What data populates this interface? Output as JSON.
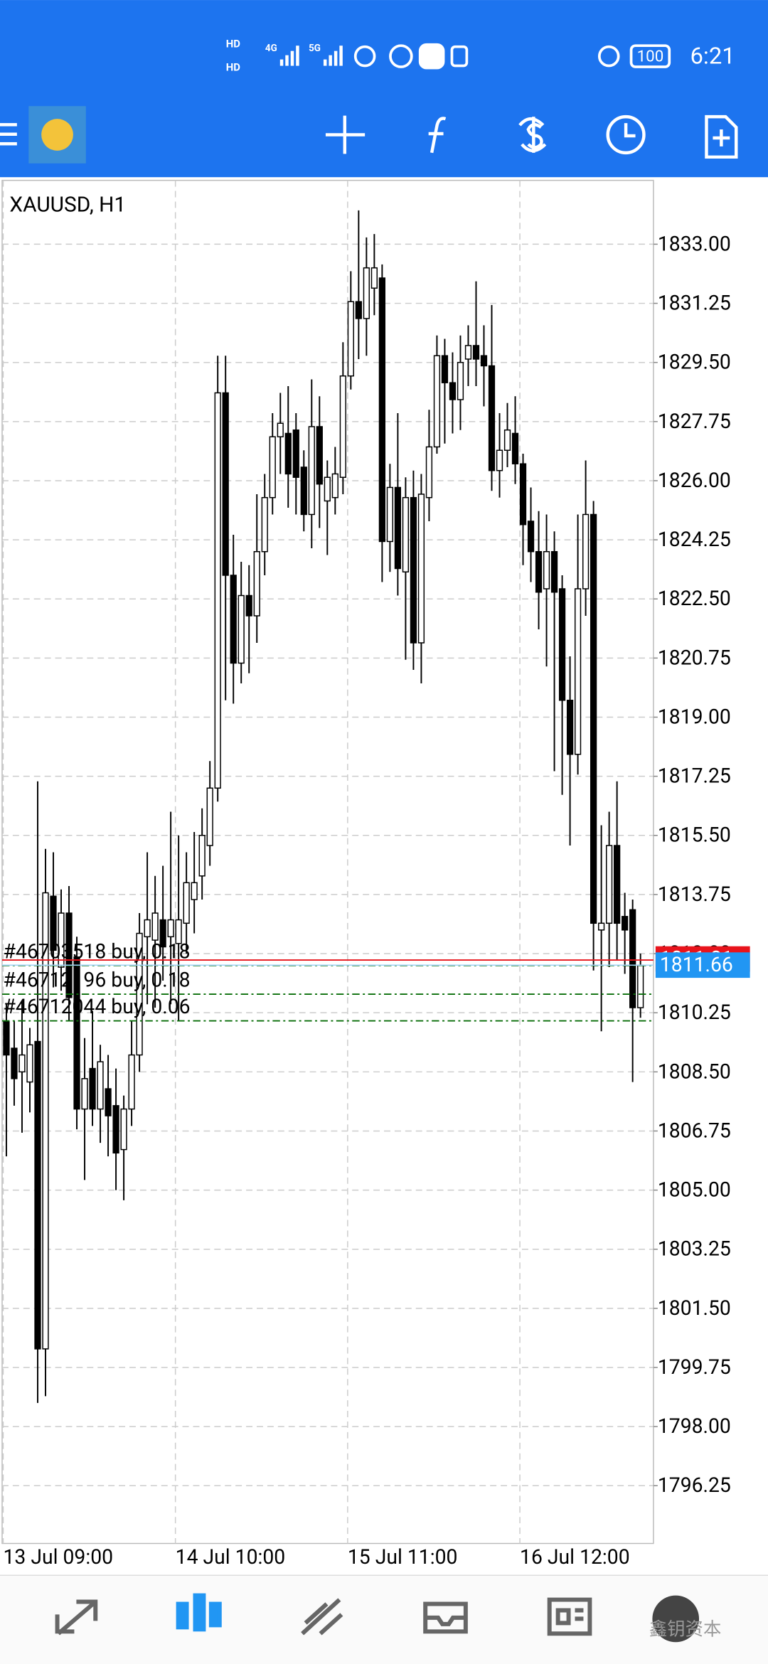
{
  "status_bar": {
    "hd": [
      "HD",
      "HD"
    ],
    "network": [
      "4G",
      "5G"
    ],
    "battery": "100",
    "time": "6:21"
  },
  "chart_data": {
    "type": "candlestick",
    "title": "XAUUSD, H1",
    "open": [
      1810.0,
      1809.2,
      1808.5,
      1808.2,
      1809.4,
      1800.3,
      1813.7,
      1811.6,
      1813.2,
      1811.9,
      1807.4,
      1808.6,
      1807.4,
      1808.0,
      1807.5,
      1806.2,
      1807.4,
      1809.0,
      1812.5,
      1812.4,
      1813.0,
      1812.5,
      1812.3,
      1812.9,
      1813.6,
      1814.3,
      1815.2,
      1816.9,
      1828.6,
      1823.2,
      1820.6,
      1822.6,
      1822.0,
      1823.9,
      1825.5,
      1827.3,
      1827.4,
      1827.5,
      1826.4,
      1825.0,
      1827.6,
      1825.4,
      1825.5,
      1826.1,
      1829.1,
      1831.3,
      1830.8,
      1831.7,
      1832.0,
      1824.2,
      1825.8,
      1823.3,
      1825.5,
      1821.2,
      1825.5,
      1827.0,
      1829.7,
      1828.9,
      1828.4,
      1829.6,
      1830.0,
      1829.7,
      1829.4,
      1826.3,
      1826.9,
      1827.4,
      1826.5,
      1824.8,
      1823.9,
      1822.8,
      1823.9,
      1822.8,
      1819.5,
      1817.9,
      1822.8,
      1825.0,
      1812.7,
      1812.9,
      1815.2,
      1813.1,
      1813.3,
      1810.4
    ],
    "high": [
      1810.5,
      1810.0,
      1810.6,
      1809.8,
      1817.1,
      1815.1,
      1815.0,
      1813.9,
      1814.0,
      1812.5,
      1809.5,
      1810.3,
      1809.3,
      1809.0,
      1808.6,
      1807.8,
      1810.0,
      1813.2,
      1815.0,
      1814.3,
      1814.6,
      1816.2,
      1815.5,
      1815.0,
      1815.6,
      1816.3,
      1817.7,
      1829.7,
      1829.7,
      1824.4,
      1823.6,
      1823.5,
      1825.6,
      1826.2,
      1828.0,
      1828.6,
      1828.8,
      1828.0,
      1826.9,
      1829.0,
      1828.5,
      1826.6,
      1827.0,
      1830.1,
      1832.2,
      1834.0,
      1833.2,
      1833.3,
      1832.4,
      1826.5,
      1828.0,
      1826.1,
      1826.3,
      1826.2,
      1828.1,
      1830.3,
      1830.2,
      1829.8,
      1830.3,
      1830.6,
      1831.9,
      1830.6,
      1831.2,
      1828.0,
      1828.3,
      1828.5,
      1826.8,
      1825.8,
      1825.1,
      1825.0,
      1824.5,
      1823.2,
      1820.8,
      1825.0,
      1826.6,
      1825.4,
      1815.8,
      1816.2,
      1817.1,
      1813.8,
      1813.6,
      1812.0
    ],
    "low": [
      1806.0,
      1807.5,
      1806.7,
      1807.3,
      1798.7,
      1798.9,
      1811.0,
      1810.9,
      1810.0,
      1806.8,
      1805.3,
      1806.9,
      1806.4,
      1806.0,
      1805.0,
      1804.7,
      1806.9,
      1808.5,
      1810.5,
      1810.4,
      1811.2,
      1810.5,
      1810.0,
      1812.0,
      1812.6,
      1813.6,
      1814.6,
      1816.5,
      1819.5,
      1819.4,
      1820.0,
      1820.3,
      1821.2,
      1823.2,
      1825.0,
      1826.2,
      1825.2,
      1825.0,
      1824.5,
      1824.0,
      1824.6,
      1823.8,
      1825.0,
      1825.6,
      1828.7,
      1829.6,
      1829.7,
      1830.9,
      1823.0,
      1823.3,
      1822.6,
      1820.7,
      1820.4,
      1820.0,
      1824.8,
      1826.8,
      1827.1,
      1827.4,
      1827.5,
      1828.8,
      1828.8,
      1828.2,
      1825.7,
      1825.5,
      1826.4,
      1825.9,
      1823.5,
      1823.0,
      1821.6,
      1820.5,
      1817.4,
      1816.7,
      1815.2,
      1817.3,
      1822.0,
      1811.5,
      1809.7,
      1811.6,
      1811.8,
      1811.4,
      1808.2,
      1810.1
    ],
    "close": [
      1809.0,
      1808.3,
      1809.0,
      1809.3,
      1800.3,
      1813.8,
      1812.1,
      1813.2,
      1810.7,
      1807.4,
      1808.3,
      1807.4,
      1808.8,
      1807.2,
      1806.1,
      1807.4,
      1809.0,
      1812.6,
      1813.0,
      1813.2,
      1812.2,
      1813.0,
      1813.0,
      1814.1,
      1814.1,
      1815.5,
      1816.9,
      1828.6,
      1823.2,
      1820.6,
      1822.6,
      1822.0,
      1823.9,
      1825.5,
      1827.3,
      1827.7,
      1826.2,
      1826.1,
      1825.0,
      1827.6,
      1825.9,
      1826.1,
      1826.2,
      1829.1,
      1831.3,
      1830.8,
      1832.3,
      1832.3,
      1824.2,
      1825.8,
      1823.4,
      1825.5,
      1821.2,
      1825.6,
      1827.0,
      1829.7,
      1828.9,
      1828.4,
      1829.5,
      1830.0,
      1829.6,
      1829.4,
      1826.3,
      1826.9,
      1827.5,
      1826.5,
      1824.7,
      1823.9,
      1822.7,
      1823.9,
      1822.7,
      1819.5,
      1817.9,
      1822.8,
      1825.0,
      1812.9,
      1812.9,
      1815.2,
      1812.9,
      1812.7,
      1810.4,
      1811.66
    ],
    "bull_color": "#ffffff",
    "bear_color": "#000000",
    "ylim": [
      1794.54,
      1834.89
    ],
    "yticks": [
      {
        "value": 1833,
        "label": "1833.00"
      },
      {
        "value": 1831.25,
        "label": "1831.25"
      },
      {
        "value": 1829.5,
        "label": "1829.50"
      },
      {
        "value": 1827.75,
        "label": "1827.75"
      },
      {
        "value": 1826,
        "label": "1826.00"
      },
      {
        "value": 1824.25,
        "label": "1824.25"
      },
      {
        "value": 1822.5,
        "label": "1822.50"
      },
      {
        "value": 1820.75,
        "label": "1820.75"
      },
      {
        "value": 1819,
        "label": "1819.00"
      },
      {
        "value": 1817.25,
        "label": "1817.25"
      },
      {
        "value": 1815.5,
        "label": "1815.50"
      },
      {
        "value": 1813.75,
        "label": "1813.75"
      },
      {
        "value": 1812,
        "label": "1812.00"
      },
      {
        "value": 1810.25,
        "label": "1810.25"
      },
      {
        "value": 1808.5,
        "label": "1808.50"
      },
      {
        "value": 1806.75,
        "label": "1806.75"
      },
      {
        "value": 1805,
        "label": "1805.00"
      },
      {
        "value": 1803.25,
        "label": "1803.25"
      },
      {
        "value": 1801.5,
        "label": "1801.50"
      },
      {
        "value": 1799.75,
        "label": "1799.75"
      },
      {
        "value": 1798,
        "label": "1798.00"
      },
      {
        "value": 1796.25,
        "label": "1796.25"
      }
    ],
    "xticks": [
      {
        "value": 0,
        "label": "13 Jul 09:00"
      },
      {
        "value": 22,
        "label": "14 Jul 10:00"
      },
      {
        "value": 44,
        "label": "15 Jul 11:00"
      },
      {
        "value": 66,
        "label": "16 Jul 12:00"
      }
    ],
    "grid": true,
    "bid": 1811.66,
    "bid_color": "#2196f3",
    "ask": 1811.81,
    "ask_color": "#e8141c",
    "orders": [
      {
        "label": "#46703518 buy, 0.18",
        "price": 1811.65
      },
      {
        "label": "#46712196 buy, 0.18",
        "price": 1810.8
      },
      {
        "label": "#46712044 buy, 0.06",
        "price": 1810.01
      }
    ],
    "order_color": "#0a6e0a"
  },
  "watermark": "鑫钥资本"
}
